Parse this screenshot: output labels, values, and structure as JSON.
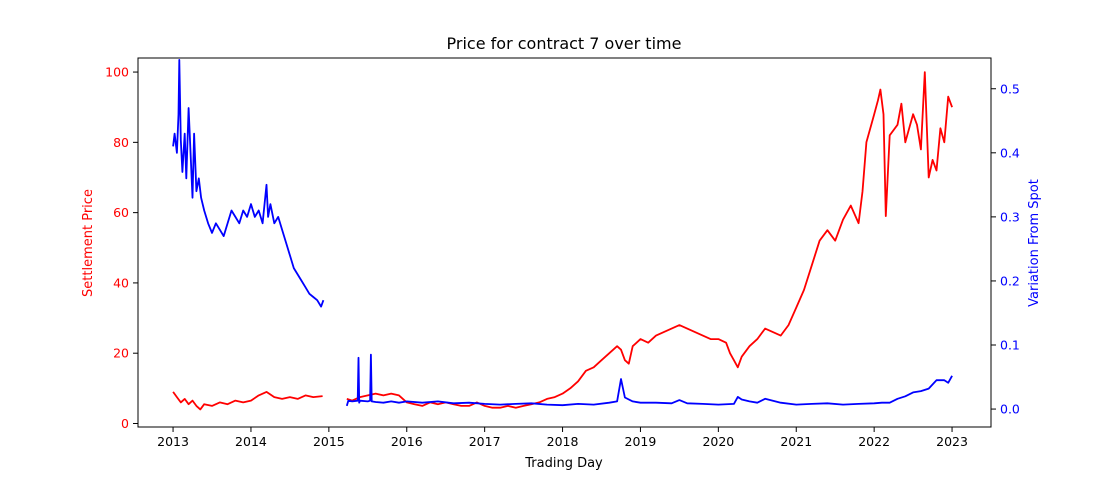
{
  "chart_data": {
    "type": "line",
    "title": "Price for contract 7 over time",
    "xlabel": "Trading Day",
    "x_ticks": [
      "2013",
      "2014",
      "2015",
      "2016",
      "2017",
      "2018",
      "2019",
      "2020",
      "2021",
      "2022",
      "2023"
    ],
    "xlim": [
      2012.55,
      2023.5
    ],
    "grid": false,
    "legend": "none",
    "left_axis": {
      "label": "Settlement Price",
      "color": "#ff0000",
      "ylim": [
        -1,
        104
      ],
      "ticks": [
        "0",
        "20",
        "40",
        "60",
        "80",
        "100"
      ]
    },
    "right_axis": {
      "label": "Variation From Spot",
      "color": "#0000ff",
      "ylim": [
        -0.028,
        0.548
      ],
      "ticks": [
        "0.0",
        "0.1",
        "0.2",
        "0.3",
        "0.4",
        "0.5"
      ]
    },
    "series": [
      {
        "axis": "left",
        "color": "#ff0000",
        "segments": [
          {
            "x": [
              2013.0,
              2013.05,
              2013.1,
              2013.15,
              2013.2,
              2013.25,
              2013.3,
              2013.35,
              2013.4,
              2013.5,
              2013.6,
              2013.7,
              2013.8,
              2013.9,
              2014.0,
              2014.1,
              2014.2,
              2014.3,
              2014.4,
              2014.5,
              2014.6,
              2014.7,
              2014.8,
              2014.92
            ],
            "y": [
              9.0,
              7.5,
              6.0,
              7.0,
              5.5,
              6.5,
              5.0,
              4.0,
              5.5,
              5.0,
              6.0,
              5.5,
              6.5,
              6.0,
              6.5,
              8.0,
              9.0,
              7.5,
              7.0,
              7.5,
              7.0,
              8.0,
              7.5,
              7.8
            ]
          },
          {
            "x": [
              2015.23,
              2015.3,
              2015.4,
              2015.5,
              2015.6,
              2015.7,
              2015.8,
              2015.9,
              2016.0,
              2016.1,
              2016.2,
              2016.3,
              2016.4,
              2016.5,
              2016.6,
              2016.7,
              2016.8,
              2016.9,
              2017.0,
              2017.1,
              2017.2,
              2017.3,
              2017.4,
              2017.5,
              2017.6,
              2017.7,
              2017.8,
              2017.9,
              2018.0,
              2018.1,
              2018.2,
              2018.3,
              2018.4,
              2018.5,
              2018.6,
              2018.7,
              2018.75,
              2018.8,
              2018.85,
              2018.9,
              2019.0,
              2019.1,
              2019.2,
              2019.3,
              2019.4,
              2019.5,
              2019.6,
              2019.7,
              2019.8,
              2019.9,
              2020.0,
              2020.1,
              2020.15,
              2020.2,
              2020.25,
              2020.3,
              2020.4,
              2020.5,
              2020.6,
              2020.7,
              2020.8,
              2020.9,
              2021.0,
              2021.1,
              2021.2,
              2021.3,
              2021.4,
              2021.5,
              2021.6,
              2021.7,
              2021.8,
              2021.85,
              2021.9,
              2021.95,
              2022.0,
              2022.05,
              2022.08,
              2022.12,
              2022.15,
              2022.2,
              2022.3,
              2022.35,
              2022.4,
              2022.5,
              2022.55,
              2022.6,
              2022.65,
              2022.7,
              2022.75,
              2022.8,
              2022.85,
              2022.9,
              2022.95,
              2023.0
            ],
            "y": [
              7.0,
              6.5,
              7.5,
              8.0,
              8.5,
              8.0,
              8.5,
              8.0,
              6.0,
              5.5,
              5.0,
              6.0,
              5.5,
              6.0,
              5.5,
              5.0,
              5.0,
              6.0,
              5.0,
              4.5,
              4.5,
              5.0,
              4.5,
              5.0,
              5.5,
              6.0,
              7.0,
              7.5,
              8.5,
              10.0,
              12.0,
              15.0,
              16.0,
              18.0,
              20.0,
              22.0,
              21.0,
              18.0,
              17.0,
              22.0,
              24.0,
              23.0,
              25.0,
              26.0,
              27.0,
              28.0,
              27.0,
              26.0,
              25.0,
              24.0,
              24.0,
              23.0,
              20.0,
              18.0,
              16.0,
              19.0,
              22.0,
              24.0,
              27.0,
              26.0,
              25.0,
              28.0,
              33.0,
              38.0,
              45.0,
              52.0,
              55.0,
              52.0,
              58.0,
              62.0,
              57.0,
              66.0,
              80.0,
              84.0,
              88.0,
              92.0,
              95.0,
              88.0,
              59.0,
              82.0,
              85.0,
              91.0,
              80.0,
              88.0,
              85.0,
              78.0,
              100.0,
              70.0,
              75.0,
              72.0,
              84.0,
              80.0,
              93.0,
              90.0
            ]
          }
        ]
      },
      {
        "axis": "right",
        "color": "#0000ff",
        "segments": [
          {
            "x": [
              2013.0,
              2013.02,
              2013.05,
              2013.07,
              2013.08,
              2013.1,
              2013.12,
              2013.15,
              2013.17,
              2013.2,
              2013.25,
              2013.27,
              2013.3,
              2013.33,
              2013.36,
              2013.4,
              2013.45,
              2013.5,
              2013.55,
              2013.6,
              2013.65,
              2013.7,
              2013.75,
              2013.8,
              2013.85,
              2013.9,
              2013.95,
              2014.0,
              2014.05,
              2014.1,
              2014.15,
              2014.2,
              2014.22,
              2014.25,
              2014.3,
              2014.35,
              2014.4,
              2014.45,
              2014.5,
              2014.55,
              2014.6,
              2014.65,
              2014.7,
              2014.75,
              2014.8,
              2014.85,
              2014.9,
              2014.93
            ],
            "y": [
              0.41,
              0.43,
              0.4,
              0.46,
              0.545,
              0.42,
              0.37,
              0.43,
              0.36,
              0.47,
              0.33,
              0.43,
              0.34,
              0.36,
              0.33,
              0.31,
              0.29,
              0.275,
              0.29,
              0.28,
              0.27,
              0.29,
              0.31,
              0.3,
              0.29,
              0.31,
              0.3,
              0.32,
              0.3,
              0.31,
              0.29,
              0.35,
              0.3,
              0.32,
              0.29,
              0.3,
              0.28,
              0.26,
              0.24,
              0.22,
              0.21,
              0.2,
              0.19,
              0.18,
              0.175,
              0.17,
              0.16,
              0.17
            ]
          },
          {
            "x": [
              2015.23,
              2015.25,
              2015.3,
              2015.37,
              2015.38,
              2015.39,
              2015.4,
              2015.5,
              2015.53,
              2015.54,
              2015.55,
              2015.6,
              2015.7,
              2015.8,
              2015.9,
              2016.0,
              2016.2,
              2016.4,
              2016.6,
              2016.8,
              2017.0,
              2017.2,
              2017.4,
              2017.6,
              2017.8,
              2018.0,
              2018.2,
              2018.4,
              2018.6,
              2018.7,
              2018.75,
              2018.8,
              2018.9,
              2019.0,
              2019.2,
              2019.4,
              2019.5,
              2019.6,
              2019.8,
              2020.0,
              2020.2,
              2020.25,
              2020.3,
              2020.4,
              2020.5,
              2020.6,
              2020.8,
              2021.0,
              2021.2,
              2021.4,
              2021.6,
              2021.8,
              2022.0,
              2022.1,
              2022.2,
              2022.3,
              2022.4,
              2022.5,
              2022.6,
              2022.7,
              2022.8,
              2022.9,
              2022.95,
              2023.0
            ],
            "y": [
              0.005,
              0.013,
              0.012,
              0.013,
              0.08,
              0.01,
              0.013,
              0.012,
              0.013,
              0.085,
              0.012,
              0.011,
              0.01,
              0.012,
              0.01,
              0.012,
              0.01,
              0.012,
              0.009,
              0.01,
              0.008,
              0.007,
              0.008,
              0.009,
              0.007,
              0.006,
              0.008,
              0.007,
              0.01,
              0.012,
              0.047,
              0.018,
              0.012,
              0.01,
              0.01,
              0.009,
              0.014,
              0.009,
              0.008,
              0.007,
              0.008,
              0.019,
              0.015,
              0.012,
              0.01,
              0.016,
              0.01,
              0.007,
              0.008,
              0.009,
              0.007,
              0.008,
              0.009,
              0.01,
              0.01,
              0.016,
              0.02,
              0.026,
              0.028,
              0.032,
              0.045,
              0.045,
              0.041,
              0.052
            ]
          }
        ]
      }
    ]
  }
}
